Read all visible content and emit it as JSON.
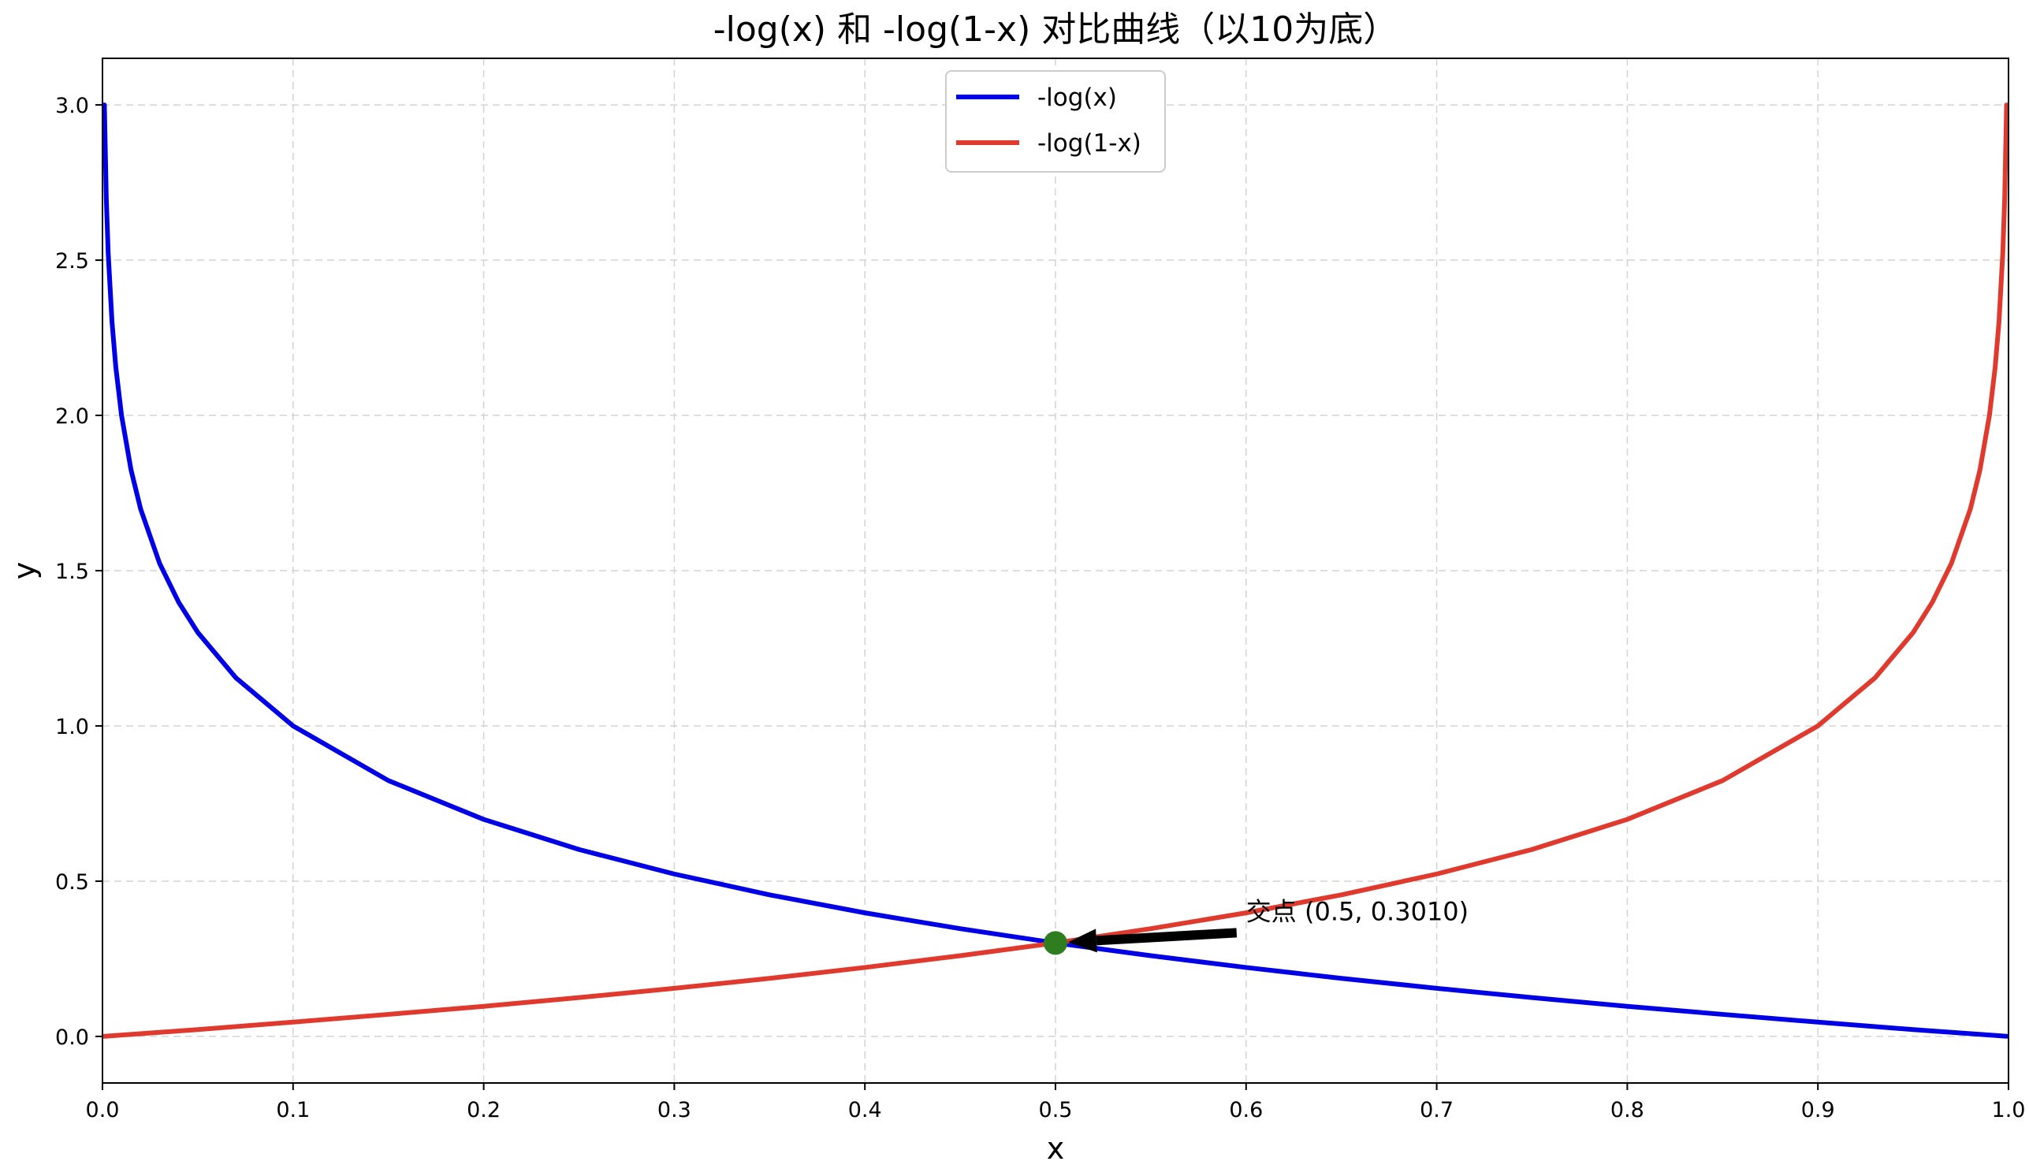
{
  "chart_data": {
    "type": "line",
    "title": "-log(x) 和 -log(1-x) 对比曲线（以10为底）",
    "xlabel": "x",
    "ylabel": "y",
    "xlim": [
      0.0,
      1.0
    ],
    "ylim": [
      -0.15,
      3.15
    ],
    "x_ticks": [
      "0.0",
      "0.1",
      "0.2",
      "0.3",
      "0.4",
      "0.5",
      "0.6",
      "0.7",
      "0.8",
      "0.9",
      "1.0"
    ],
    "y_ticks": [
      "0.0",
      "0.5",
      "1.0",
      "1.5",
      "2.0",
      "2.5",
      "3.0"
    ],
    "grid": true,
    "legend_position": "top-center",
    "series": [
      {
        "name": "-log(x)",
        "color": "#0000e6",
        "x": [
          0.001,
          0.002,
          0.003,
          0.005,
          0.007,
          0.01,
          0.015,
          0.02,
          0.03,
          0.04,
          0.05,
          0.07,
          0.1,
          0.15,
          0.2,
          0.25,
          0.3,
          0.35,
          0.4,
          0.45,
          0.5,
          0.55,
          0.6,
          0.65,
          0.7,
          0.75,
          0.8,
          0.85,
          0.9,
          0.95,
          0.999
        ],
        "y": [
          3.0,
          2.699,
          2.523,
          2.301,
          2.155,
          2.0,
          1.824,
          1.699,
          1.523,
          1.398,
          1.301,
          1.155,
          1.0,
          0.824,
          0.699,
          0.602,
          0.523,
          0.456,
          0.398,
          0.347,
          0.301,
          0.26,
          0.222,
          0.187,
          0.155,
          0.125,
          0.097,
          0.071,
          0.046,
          0.022,
          0.0004
        ]
      },
      {
        "name": "-log(1-x)",
        "color": "#e03a2e",
        "x": [
          0.001,
          0.05,
          0.1,
          0.15,
          0.2,
          0.25,
          0.3,
          0.35,
          0.4,
          0.45,
          0.5,
          0.55,
          0.6,
          0.65,
          0.7,
          0.75,
          0.8,
          0.85,
          0.9,
          0.93,
          0.95,
          0.96,
          0.97,
          0.98,
          0.985,
          0.99,
          0.993,
          0.995,
          0.997,
          0.998,
          0.999
        ],
        "y": [
          0.0004,
          0.022,
          0.046,
          0.071,
          0.097,
          0.125,
          0.155,
          0.187,
          0.222,
          0.26,
          0.301,
          0.347,
          0.398,
          0.456,
          0.523,
          0.602,
          0.699,
          0.824,
          1.0,
          1.155,
          1.301,
          1.398,
          1.523,
          1.699,
          1.824,
          2.0,
          2.155,
          2.301,
          2.523,
          2.699,
          3.0
        ]
      }
    ],
    "intersection": {
      "x": 0.5,
      "y": 0.301,
      "color": "#2e7d1f",
      "label": "交点 (0.5, 0.3010)",
      "label_x": 0.6,
      "label_y": 0.4
    }
  }
}
